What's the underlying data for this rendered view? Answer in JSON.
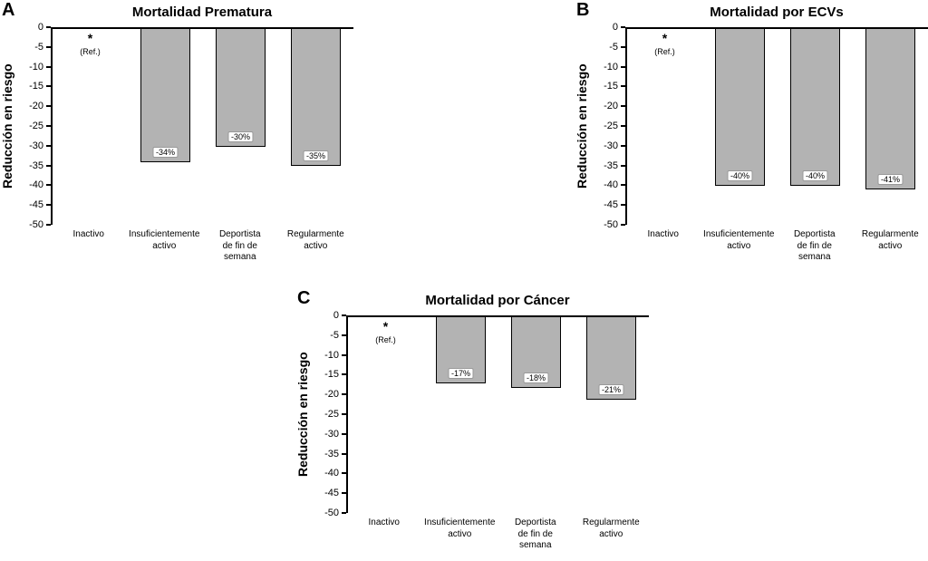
{
  "figure": {
    "background": "#ffffff",
    "bar_color": "#b3b3b3",
    "axis_color": "#000000",
    "label_box_border": "#999999"
  },
  "chart_data": [
    {
      "type": "bar",
      "panel_letter": "A",
      "title": "Mortalidad Prematura",
      "ylabel": "Reducción en riesgo",
      "xlabel": "",
      "ylim": [
        -50,
        0
      ],
      "yticks": [
        0,
        -5,
        -10,
        -15,
        -20,
        -25,
        -30,
        -35,
        -40,
        -45,
        -50
      ],
      "categories": [
        "Inactivo",
        "Insuficientemente\nactivo",
        "Deportista\nde fin de\nsemana",
        "Regularmente\nactivo"
      ],
      "values": [
        0,
        -34,
        -30,
        -35
      ],
      "bar_labels": [
        null,
        "-34%",
        "-30%",
        "-35%"
      ],
      "reference": {
        "category": "Inactivo",
        "symbol": "*",
        "label": "(Ref.)"
      },
      "grid": false,
      "legend": false
    },
    {
      "type": "bar",
      "panel_letter": "B",
      "title": "Mortalidad por ECVs",
      "ylabel": "Reducción en riesgo",
      "xlabel": "",
      "ylim": [
        -50,
        0
      ],
      "yticks": [
        0,
        -5,
        -10,
        -15,
        -20,
        -25,
        -30,
        -35,
        -40,
        -45,
        -50
      ],
      "categories": [
        "Inactivo",
        "Insuficientemente\nactivo",
        "Deportista\nde fin de\nsemana",
        "Regularmente\nactivo"
      ],
      "values": [
        0,
        -40,
        -40,
        -41
      ],
      "bar_labels": [
        null,
        "-40%",
        "-40%",
        "-41%"
      ],
      "reference": {
        "category": "Inactivo",
        "symbol": "*",
        "label": "(Ref.)"
      },
      "grid": false,
      "legend": false
    },
    {
      "type": "bar",
      "panel_letter": "C",
      "title": "Mortalidad por  Cáncer",
      "ylabel": "Reducción en riesgo",
      "xlabel": "",
      "ylim": [
        -50,
        0
      ],
      "yticks": [
        0,
        -5,
        -10,
        -15,
        -20,
        -25,
        -30,
        -35,
        -40,
        -45,
        -50
      ],
      "categories": [
        "Inactivo",
        "Insuficientemente\nactivo",
        "Deportista\nde fin de\nsemana",
        "Regularmente\nactivo"
      ],
      "values": [
        0,
        -17,
        -18,
        -21
      ],
      "bar_labels": [
        null,
        "-17%",
        "-18%",
        "-21%"
      ],
      "reference": {
        "category": "Inactivo",
        "symbol": "*",
        "label": "(Ref.)"
      },
      "grid": false,
      "legend": false
    }
  ]
}
